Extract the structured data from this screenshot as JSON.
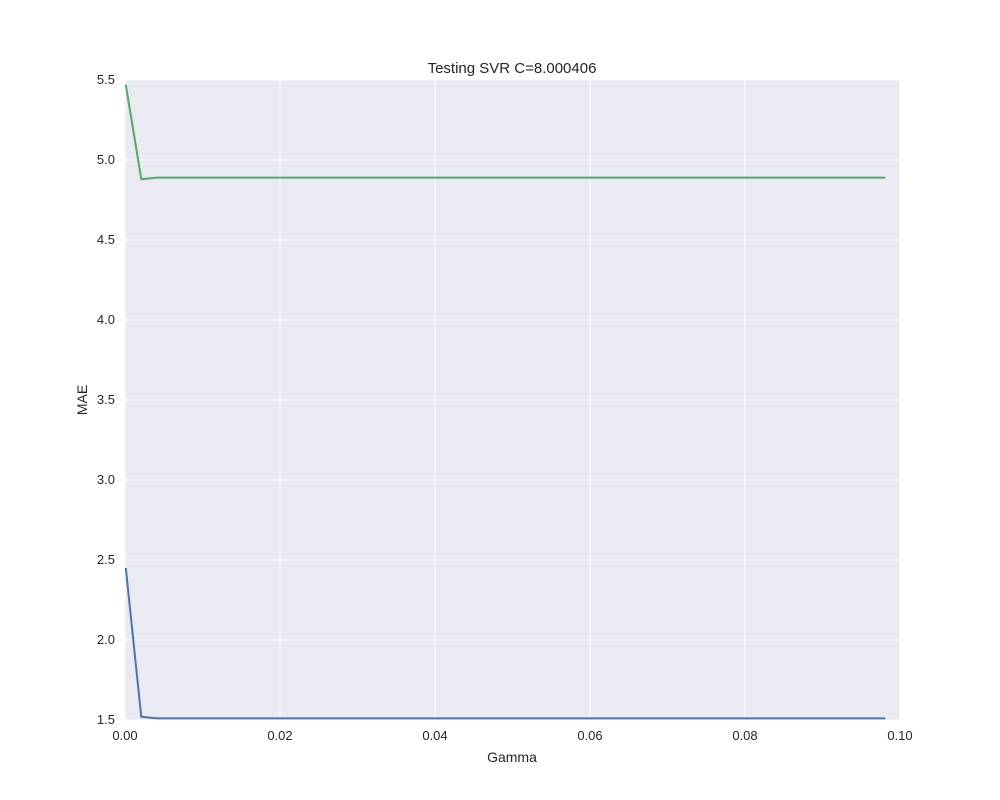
{
  "chart_data": {
    "type": "line",
    "title": "Testing SVR C=8.000406",
    "xlabel": "Gamma",
    "ylabel": "MAE",
    "xlim": [
      0.0,
      0.1
    ],
    "ylim": [
      1.5,
      5.5
    ],
    "x_ticks": [
      "0.00",
      "0.02",
      "0.04",
      "0.06",
      "0.08",
      "0.10"
    ],
    "y_ticks": [
      "1.5",
      "2.0",
      "2.5",
      "3.0",
      "3.5",
      "4.0",
      "4.5",
      "5.0",
      "5.5"
    ],
    "grid": true,
    "series": [
      {
        "color": "#4c72b0",
        "x": [
          0.0001,
          0.0021,
          0.0041,
          0.0061,
          0.0981
        ],
        "y": [
          2.45,
          1.52,
          1.51,
          1.51,
          1.51
        ]
      },
      {
        "color": "#55a868",
        "x": [
          0.0001,
          0.0021,
          0.0041,
          0.0061,
          0.0981
        ],
        "y": [
          5.47,
          4.88,
          4.89,
          4.89,
          4.89
        ]
      }
    ]
  },
  "colors": {
    "plot_background": "#eaeaf2",
    "grid": "#ffffff",
    "text": "#262626"
  }
}
